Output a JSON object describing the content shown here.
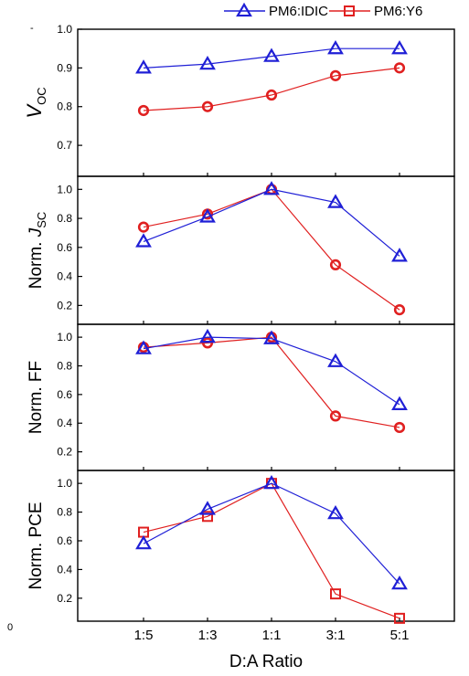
{
  "colors": {
    "pm6_idic": "#1f1fd6",
    "pm6_y6": "#e02020",
    "axis": "#000000"
  },
  "stray_text": {
    "top_left": "-",
    "bottom_left": "0"
  },
  "chart_data": {
    "type": "line",
    "layout": "stacked panels sharing x axis",
    "categories": [
      "1:5",
      "1:3",
      "1:1",
      "3:1",
      "5:1"
    ],
    "xlabel": "D:A Ratio",
    "legend": {
      "placement": "top-right",
      "entries": [
        {
          "name": "PM6:IDIC",
          "marker": "triangle",
          "color": "#1f1fd6"
        },
        {
          "name": "PM6:Y6",
          "marker": "circle/square",
          "color": "#e02020"
        }
      ]
    },
    "panels": [
      {
        "ylabel_main": "V",
        "ylabel_sub": "OC",
        "ylim": [
          0.62,
          1.0
        ],
        "yticks": [
          0.7,
          0.8,
          0.9,
          1.0
        ],
        "ytick_labels": [
          "0.7",
          "0.8",
          "0.9",
          "1.0"
        ],
        "marker_y6": "circle",
        "series": [
          {
            "name": "PM6:IDIC",
            "values": [
              0.9,
              0.91,
              0.93,
              0.95,
              0.95
            ]
          },
          {
            "name": "PM6:Y6",
            "values": [
              0.79,
              0.8,
              0.83,
              0.88,
              0.9
            ]
          }
        ]
      },
      {
        "ylabel_main": "Norm. J",
        "ylabel_sub": "SC",
        "ylim": [
          0.07,
          1.09
        ],
        "yticks": [
          0.2,
          0.4,
          0.6,
          0.8,
          1.0
        ],
        "ytick_labels": [
          "0.2",
          "0.4",
          "0.6",
          "0.8",
          "1.0"
        ],
        "marker_y6": "circle",
        "series": [
          {
            "name": "PM6:IDIC",
            "values": [
              0.64,
              0.81,
              1.0,
              0.91,
              0.54
            ]
          },
          {
            "name": "PM6:Y6",
            "values": [
              0.74,
              0.83,
              1.0,
              0.48,
              0.17
            ]
          }
        ]
      },
      {
        "ylabel_main": "Norm. FF",
        "ylabel_sub": "",
        "ylim": [
          0.07,
          1.09
        ],
        "yticks": [
          0.2,
          0.4,
          0.6,
          0.8,
          1.0
        ],
        "ytick_labels": [
          "0.2",
          "0.4",
          "0.6",
          "0.8",
          "1.0"
        ],
        "marker_y6": "circle",
        "series": [
          {
            "name": "PM6:IDIC",
            "values": [
              0.92,
              1.0,
              0.99,
              0.83,
              0.53
            ]
          },
          {
            "name": "PM6:Y6",
            "values": [
              0.93,
              0.96,
              1.0,
              0.45,
              0.37
            ]
          }
        ]
      },
      {
        "ylabel_main": "Norm. PCE",
        "ylabel_sub": "",
        "ylim": [
          0.04,
          1.09
        ],
        "yticks": [
          0.2,
          0.4,
          0.6,
          0.8,
          1.0
        ],
        "ytick_labels": [
          "0.2",
          "0.4",
          "0.6",
          "0.8",
          "1.0"
        ],
        "marker_y6": "square",
        "series": [
          {
            "name": "PM6:IDIC",
            "values": [
              0.58,
              0.82,
              1.0,
              0.79,
              0.3
            ]
          },
          {
            "name": "PM6:Y6",
            "values": [
              0.66,
              0.77,
              1.0,
              0.23,
              0.06
            ]
          }
        ]
      }
    ]
  }
}
